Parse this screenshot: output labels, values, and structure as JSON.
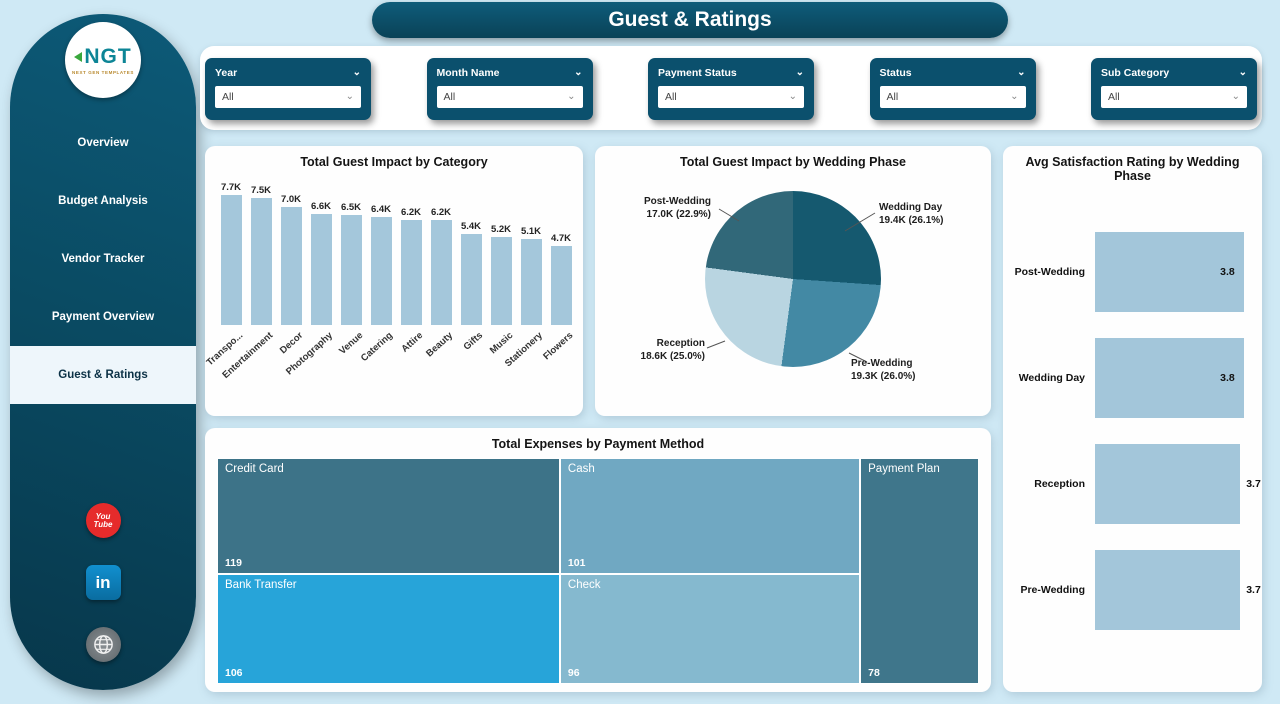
{
  "title": "Guest & Ratings",
  "sidebar": {
    "logo": {
      "text": "NGT",
      "subtext": "NEXT GEN TEMPLATES"
    },
    "items": [
      {
        "label": "Overview",
        "active": false
      },
      {
        "label": "Budget Analysis",
        "active": false
      },
      {
        "label": "Vendor Tracker",
        "active": false
      },
      {
        "label": "Payment Overview",
        "active": false
      },
      {
        "label": "Guest & Ratings",
        "active": true
      }
    ],
    "social": [
      "youtube-icon",
      "linkedin-icon",
      "website-icon"
    ]
  },
  "filters": [
    {
      "label": "Year",
      "value": "All"
    },
    {
      "label": "Month Name",
      "value": "All"
    },
    {
      "label": "Payment Status",
      "value": "All"
    },
    {
      "label": "Status",
      "value": "All"
    },
    {
      "label": "Sub Category",
      "value": "All"
    }
  ],
  "chart_data": [
    {
      "id": "category_bar",
      "type": "bar",
      "title": "Total Guest Impact by Category",
      "bar_color": "#a4c7db",
      "categories": [
        "Transpo...",
        "Entertainment",
        "Decor",
        "Photography",
        "Venue",
        "Catering",
        "Attire",
        "Beauty",
        "Gifts",
        "Music",
        "Stationery",
        "Flowers"
      ],
      "values": [
        7700,
        7500,
        7000,
        6600,
        6500,
        6400,
        6200,
        6200,
        5400,
        5200,
        5100,
        4700
      ],
      "labels": [
        "7.7K",
        "7.5K",
        "7.0K",
        "6.6K",
        "6.5K",
        "6.4K",
        "6.2K",
        "6.2K",
        "5.4K",
        "5.2K",
        "5.1K",
        "4.7K"
      ],
      "ylim": [
        0,
        7700
      ]
    },
    {
      "id": "phase_pie",
      "type": "pie",
      "title": "Total Guest Impact by Wedding Phase",
      "slices": [
        {
          "label": "Wedding Day",
          "value": 19400,
          "display": "19.4K (26.1%)",
          "pct": 26.1,
          "color": "#15596f"
        },
        {
          "label": "Pre-Wedding",
          "value": 19300,
          "display": "19.3K (26.0%)",
          "pct": 26.0,
          "color": "#4389a4"
        },
        {
          "label": "Reception",
          "value": 18600,
          "display": "18.6K (25.0%)",
          "pct": 25.0,
          "color": "#b9d5e1"
        },
        {
          "label": "Post-Wedding",
          "value": 17000,
          "display": "17.0K (22.9%)",
          "pct": 22.9,
          "color": "#316879"
        }
      ]
    },
    {
      "id": "satisfaction_bar",
      "type": "bar",
      "orientation": "horizontal",
      "title": "Avg Satisfaction Rating by Wedding Phase",
      "bar_color": "#a3c6da",
      "categories": [
        "Post-Wedding",
        "Wedding Day",
        "Reception",
        "Pre-Wedding"
      ],
      "values": [
        3.8,
        3.8,
        3.7,
        3.7
      ],
      "labels": [
        "3.8",
        "3.8",
        "3.7",
        "3.7"
      ],
      "xlim": [
        0,
        4
      ]
    },
    {
      "id": "payment_treemap",
      "type": "treemap",
      "title": "Total Expenses by Payment Method",
      "tiles": [
        {
          "label": "Credit Card",
          "value": 119,
          "color": "#3d7388",
          "rect": {
            "x": 0,
            "y": 0,
            "w": 45.0,
            "h": 51.5
          }
        },
        {
          "label": "Cash",
          "value": 101,
          "color": "#70a8c2",
          "rect": {
            "x": 45.0,
            "y": 0,
            "w": 39.4,
            "h": 51.5
          }
        },
        {
          "label": "Payment Plan",
          "value": 78,
          "color": "#3f768b",
          "rect": {
            "x": 84.4,
            "y": 0,
            "w": 15.6,
            "h": 100
          }
        },
        {
          "label": "Bank Transfer",
          "value": 106,
          "color": "#27a4d9",
          "rect": {
            "x": 0,
            "y": 51.5,
            "w": 45.0,
            "h": 48.5
          }
        },
        {
          "label": "Check",
          "value": 96,
          "color": "#85b9cf",
          "rect": {
            "x": 45.0,
            "y": 51.5,
            "w": 39.4,
            "h": 48.5
          }
        }
      ]
    }
  ]
}
